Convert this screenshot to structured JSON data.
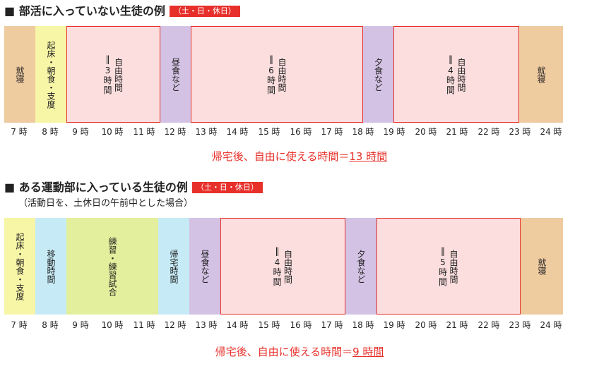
{
  "colors": {
    "sleep": "#efcba0",
    "morning": "#f7f5a6",
    "free": "#fcdede",
    "meal": "#d4c2e4",
    "move": "#c6ebf7",
    "practice": "#e3ef9c",
    "accent": "#e8302a"
  },
  "section1": {
    "title": "■ 部活に入っていない生徒の例",
    "badge": "（土・日・休日）",
    "segments": [
      {
        "label": "就寝",
        "type": "sleep"
      },
      {
        "label": "起床・朝食・支度",
        "type": "morning"
      },
      {
        "label": "自由時間",
        "duration": "3時間",
        "type": "free"
      },
      {
        "label": "昼食など",
        "type": "meal"
      },
      {
        "label": "自由時間",
        "duration": "6時間",
        "type": "free"
      },
      {
        "label": "夕食など",
        "type": "meal"
      },
      {
        "label": "自由時間",
        "duration": "4時間",
        "type": "free"
      },
      {
        "label": "就寝",
        "type": "sleep"
      }
    ],
    "summary_prefix": "帰宅後、自由に使える時間＝",
    "summary_value": "13 時間"
  },
  "section2": {
    "title": "■ ある運動部に入っている生徒の例",
    "badge": "（土・日・休日）",
    "note": "（活動日を、土休日の午前中とした場合）",
    "segments": [
      {
        "label": "起床・朝食・支度",
        "type": "morning"
      },
      {
        "label": "移動時間",
        "type": "move"
      },
      {
        "label": "練習・練習試合",
        "type": "practice"
      },
      {
        "label": "帰宅時間",
        "type": "move"
      },
      {
        "label": "昼食など",
        "type": "meal"
      },
      {
        "label": "自由時間",
        "duration": "4時間",
        "type": "free"
      },
      {
        "label": "夕食など",
        "type": "meal"
      },
      {
        "label": "自由時間",
        "duration": "5時間",
        "type": "free"
      },
      {
        "label": "就寝",
        "type": "sleep"
      }
    ],
    "summary_prefix": "帰宅後、自由に使える時間＝",
    "summary_value": "9 時間"
  },
  "hours": [
    "7 時",
    "8 時",
    "9 時",
    "10 時",
    "11 時",
    "12 時",
    "13 時",
    "14 時",
    "15 時",
    "16 時",
    "17 時",
    "18 時",
    "19 時",
    "20 時",
    "21 時",
    "22 時",
    "23 時",
    "24 時"
  ],
  "duration_equals": "＝"
}
